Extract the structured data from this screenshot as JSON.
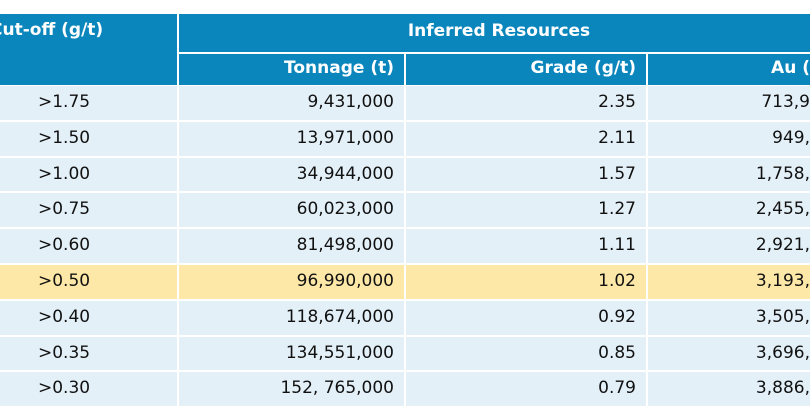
{
  "table": {
    "header": {
      "cutoff": "Cut-off (g/t)",
      "group": "Inferred Resources",
      "columns": [
        "Tonnage (t)",
        "Grade (g/t)",
        "Au ("
      ]
    },
    "rows": [
      [
        ">1.75",
        "9,431,000",
        "2.35",
        "713,9"
      ],
      [
        ">1.50",
        "13,971,000",
        "2.11",
        "949,"
      ],
      [
        ">1.00",
        "34,944,000",
        "1.57",
        "1,758,"
      ],
      [
        ">0.75",
        "60,023,000",
        "1.27",
        "2,455,"
      ],
      [
        ">0.60",
        "81,498,000",
        "1.11",
        "2,921,"
      ],
      [
        ">0.50",
        "96,990,000",
        "1.02",
        "3,193,"
      ],
      [
        ">0.40",
        "118,674,000",
        "0.92",
        "3,505,"
      ],
      [
        ">0.35",
        "134,551,000",
        "0.85",
        "3,696,"
      ],
      [
        ">0.30",
        "152, 765,000",
        "0.79",
        "3,886,"
      ]
    ],
    "highlight_row": 5
  }
}
